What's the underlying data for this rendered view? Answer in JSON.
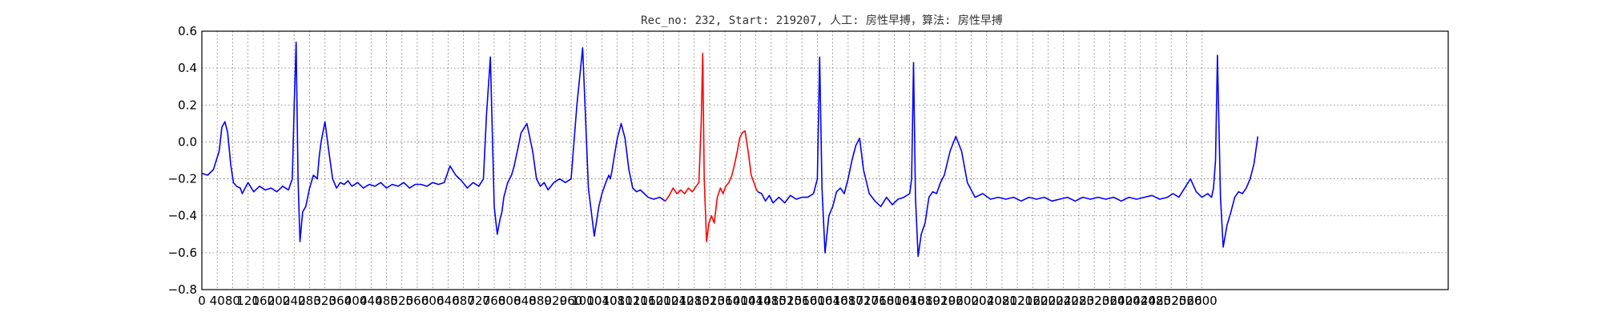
{
  "chart_data": {
    "type": "line",
    "title": "Rec_no: 232, Start: 219207, 人工: 房性早搏，算法: 房性早搏",
    "xlabel": "",
    "ylabel": "",
    "xlim": [
      0,
      3240
    ],
    "ylim": [
      -0.8,
      0.6
    ],
    "y_ticks": [
      "0.6",
      "0.4",
      "0.2",
      "0.0",
      "−0.2",
      "−0.4",
      "−0.6",
      "−0.8"
    ],
    "y_tick_values": [
      0.6,
      0.4,
      0.2,
      0.0,
      -0.2,
      -0.4,
      -0.6,
      -0.8
    ],
    "x_ticks": [
      "0",
      "40",
      "80",
      "120",
      "160",
      "200",
      "240",
      "280",
      "320",
      "360",
      "400",
      "440",
      "480",
      "520",
      "560",
      "600",
      "640",
      "680",
      "720",
      "760",
      "800",
      "840",
      "880",
      "920",
      "960",
      "1000",
      "1040",
      "1080",
      "1120",
      "1160",
      "1200",
      "1240",
      "1280",
      "1320",
      "1360",
      "1400",
      "1440",
      "1480",
      "1520",
      "1560",
      "1600",
      "1640",
      "1680",
      "1720",
      "1760",
      "1800",
      "1840",
      "1880",
      "1920",
      "1960",
      "2000",
      "2040",
      "2080",
      "2120",
      "2160",
      "2200",
      "2240",
      "2280",
      "2320",
      "2360",
      "2400",
      "2440",
      "2480",
      "2520",
      "2560",
      "2600"
    ],
    "x_tick_values": [
      0,
      40,
      80,
      120,
      160,
      200,
      240,
      280,
      320,
      360,
      400,
      440,
      480,
      520,
      560,
      600,
      640,
      680,
      720,
      760,
      800,
      840,
      880,
      920,
      960,
      1000,
      1040,
      1080,
      1120,
      1160,
      1200,
      1240,
      1280,
      1320,
      1360,
      1400,
      1440,
      1480,
      1520,
      1560,
      1600,
      1640,
      1680,
      1720,
      1760,
      1800,
      1840,
      1880,
      1920,
      1960,
      2000,
      2040,
      2080,
      2120,
      2160,
      2200,
      2240,
      2280,
      2320,
      2360,
      2400,
      2440,
      2480,
      2520,
      2560,
      2600
    ],
    "grid": true,
    "series": [
      {
        "color": "#0000ff",
        "x": [
          0,
          15,
          30,
          45,
          52,
          60,
          67,
          75,
          82,
          90,
          100,
          105,
          120,
          135,
          150,
          165,
          180,
          195,
          210,
          225,
          235,
          240,
          245,
          250,
          255,
          262,
          270,
          280,
          290,
          300,
          305,
          310,
          320,
          330,
          340,
          350,
          360,
          370,
          380,
          390,
          405,
          420,
          435,
          450,
          465,
          480,
          495,
          510,
          525,
          540,
          555,
          570,
          585,
          600,
          615,
          630,
          645,
          660,
          675,
          690,
          705,
          720,
          732,
          740,
          750,
          760,
          768,
          775,
          780,
          785,
          790,
          795,
          800,
          805,
          812,
          820,
          830,
          845,
          860,
          870,
          880,
          890,
          900,
          915,
          930,
          945,
          960,
          975,
          990,
          1005,
          1020,
          1032,
          1040,
          1050,
          1058,
          1062,
          1066,
          1072,
          1080,
          1090,
          1100,
          1110,
          1120,
          1130,
          1140,
          1150,
          1160,
          1175,
          1190,
          1205
        ],
        "y": [
          -0.17,
          -0.18,
          -0.15,
          -0.05,
          0.08,
          0.11,
          0.05,
          -0.12,
          -0.22,
          -0.24,
          -0.25,
          -0.28,
          -0.22,
          -0.27,
          -0.24,
          -0.26,
          -0.25,
          -0.27,
          -0.24,
          -0.26,
          -0.2,
          0.2,
          0.54,
          -0.2,
          -0.54,
          -0.38,
          -0.35,
          -0.25,
          -0.18,
          -0.2,
          -0.08,
          0.0,
          0.11,
          -0.05,
          -0.2,
          -0.25,
          -0.22,
          -0.23,
          -0.21,
          -0.24,
          -0.22,
          -0.25,
          -0.23,
          -0.24,
          -0.22,
          -0.25,
          -0.23,
          -0.24,
          -0.22,
          -0.25,
          -0.23,
          -0.23,
          -0.24,
          -0.22,
          -0.23,
          -0.22,
          -0.13,
          -0.18,
          -0.21,
          -0.25,
          -0.22,
          -0.24,
          -0.2,
          0.15,
          0.46,
          -0.35,
          -0.5,
          -0.42,
          -0.38,
          -0.3,
          -0.26,
          -0.22,
          -0.2,
          -0.18,
          -0.13,
          -0.05,
          0.05,
          0.1,
          -0.05,
          -0.2,
          -0.24,
          -0.22,
          -0.26,
          -0.22,
          -0.2,
          -0.22,
          -0.2,
          0.2,
          0.51,
          -0.25,
          -0.51,
          -0.35,
          -0.28,
          -0.22,
          -0.18,
          -0.2,
          -0.16,
          -0.08,
          0.02,
          0.1,
          0.02,
          -0.15,
          -0.25,
          -0.27,
          -0.26,
          -0.28,
          -0.3,
          -0.31,
          -0.3,
          -0.32
        ]
      },
      {
        "color": "#ff0000",
        "x": [
          1205,
          1215,
          1225,
          1235,
          1245,
          1255,
          1265,
          1275,
          1285,
          1292,
          1298,
          1302,
          1306,
          1312,
          1318,
          1325,
          1332,
          1340,
          1348,
          1355,
          1362,
          1370,
          1378,
          1385,
          1392,
          1398,
          1405,
          1412,
          1420,
          1428,
          1435,
          1440,
          1445
        ],
        "y": [
          -0.32,
          -0.29,
          -0.25,
          -0.28,
          -0.26,
          -0.28,
          -0.25,
          -0.27,
          -0.24,
          -0.22,
          0.1,
          0.48,
          -0.2,
          -0.54,
          -0.44,
          -0.4,
          -0.44,
          -0.3,
          -0.25,
          -0.28,
          -0.24,
          -0.22,
          -0.18,
          -0.12,
          -0.05,
          0.02,
          0.05,
          0.06,
          -0.05,
          -0.18,
          -0.22,
          -0.25,
          -0.27
        ]
      },
      {
        "color": "#0000ff",
        "x": [
          1445,
          1455,
          1465,
          1475,
          1485,
          1500,
          1515,
          1530,
          1545,
          1560,
          1575,
          1590,
          1600,
          1606,
          1612,
          1620,
          1630,
          1640,
          1650,
          1660,
          1670,
          1680,
          1690,
          1700,
          1710,
          1720,
          1735,
          1750,
          1765,
          1780,
          1795,
          1810,
          1825,
          1840,
          1845,
          1850,
          1855,
          1862,
          1870,
          1880,
          1890,
          1900,
          1910,
          1920,
          1930,
          1945,
          1960,
          1975,
          1990,
          2010,
          2030,
          2050,
          2070,
          2090,
          2110,
          2130,
          2150,
          2170,
          2190,
          2210,
          2230,
          2250,
          2270,
          2290,
          2310,
          2330,
          2350,
          2370,
          2390,
          2410,
          2430,
          2450,
          2470,
          2490,
          2510,
          2525,
          2540,
          2555,
          2570,
          2585,
          2600,
          2615,
          2625,
          2630,
          2635,
          2640,
          2648,
          2655,
          2665,
          2675,
          2685,
          2695,
          2705,
          2715,
          2725,
          2735,
          2745
        ],
        "y": [
          -0.27,
          -0.28,
          -0.32,
          -0.29,
          -0.33,
          -0.3,
          -0.33,
          -0.29,
          -0.31,
          -0.3,
          -0.3,
          -0.28,
          -0.2,
          0.46,
          -0.25,
          -0.6,
          -0.4,
          -0.35,
          -0.27,
          -0.25,
          -0.28,
          -0.2,
          -0.1,
          -0.02,
          0.02,
          -0.15,
          -0.28,
          -0.32,
          -0.35,
          -0.3,
          -0.34,
          -0.31,
          -0.3,
          -0.28,
          -0.2,
          0.43,
          -0.3,
          -0.62,
          -0.5,
          -0.44,
          -0.3,
          -0.27,
          -0.28,
          -0.22,
          -0.18,
          -0.05,
          0.03,
          -0.05,
          -0.22,
          -0.3,
          -0.28,
          -0.31,
          -0.3,
          -0.31,
          -0.3,
          -0.32,
          -0.3,
          -0.31,
          -0.3,
          -0.32,
          -0.31,
          -0.3,
          -0.32,
          -0.3,
          -0.31,
          -0.3,
          -0.31,
          -0.3,
          -0.32,
          -0.3,
          -0.31,
          -0.3,
          -0.29,
          -0.31,
          -0.3,
          -0.28,
          -0.3,
          -0.25,
          -0.2,
          -0.27,
          -0.3,
          -0.28,
          -0.3,
          -0.25,
          -0.1,
          0.47,
          -0.3,
          -0.57,
          -0.45,
          -0.38,
          -0.3,
          -0.27,
          -0.28,
          -0.25,
          -0.2,
          -0.12,
          0.03
        ]
      }
    ]
  }
}
